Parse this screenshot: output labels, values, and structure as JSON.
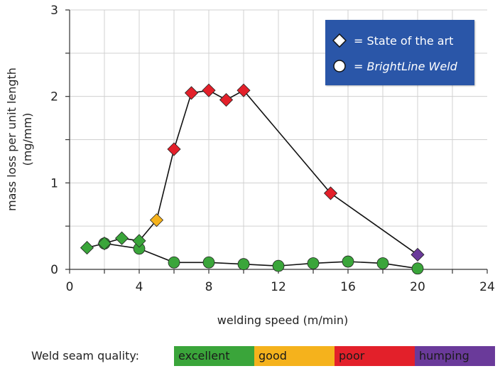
{
  "chart_data": {
    "type": "line",
    "title": "",
    "xlabel": "welding speed (m/min)",
    "ylabel_line1": "mass loss per unit length",
    "ylabel_line2": "(mg/mm)",
    "xlim": [
      0,
      24
    ],
    "ylim": [
      0,
      3
    ],
    "x_ticks": [
      "0",
      "4",
      "8",
      "12",
      "16",
      "20",
      "24"
    ],
    "y_ticks": [
      "0",
      "1",
      "2",
      "3"
    ],
    "grid": true,
    "legend_placement": "top-right",
    "series": [
      {
        "name": "State of the art",
        "marker": "diamond",
        "points": [
          {
            "x": 1,
            "y": 0.25,
            "quality": "excellent"
          },
          {
            "x": 2,
            "y": 0.3,
            "quality": "excellent"
          },
          {
            "x": 3,
            "y": 0.36,
            "quality": "excellent"
          },
          {
            "x": 4,
            "y": 0.33,
            "quality": "excellent"
          },
          {
            "x": 5,
            "y": 0.57,
            "quality": "good"
          },
          {
            "x": 6,
            "y": 1.39,
            "quality": "poor"
          },
          {
            "x": 7,
            "y": 2.04,
            "quality": "poor"
          },
          {
            "x": 8,
            "y": 2.07,
            "quality": "poor"
          },
          {
            "x": 9,
            "y": 1.96,
            "quality": "poor"
          },
          {
            "x": 10,
            "y": 2.07,
            "quality": "poor"
          },
          {
            "x": 15,
            "y": 0.88,
            "quality": "poor"
          },
          {
            "x": 20,
            "y": 0.17,
            "quality": "humping"
          }
        ]
      },
      {
        "name": "BrightLine Weld",
        "marker": "circle",
        "points": [
          {
            "x": 2,
            "y": 0.3,
            "quality": "excellent"
          },
          {
            "x": 4,
            "y": 0.24,
            "quality": "excellent"
          },
          {
            "x": 6,
            "y": 0.08,
            "quality": "excellent"
          },
          {
            "x": 8,
            "y": 0.08,
            "quality": "excellent"
          },
          {
            "x": 10,
            "y": 0.06,
            "quality": "excellent"
          },
          {
            "x": 12,
            "y": 0.04,
            "quality": "excellent"
          },
          {
            "x": 14,
            "y": 0.07,
            "quality": "excellent"
          },
          {
            "x": 16,
            "y": 0.09,
            "quality": "excellent"
          },
          {
            "x": 18,
            "y": 0.07,
            "quality": "excellent"
          },
          {
            "x": 20,
            "y": 0.01,
            "quality": "excellent"
          }
        ]
      }
    ]
  },
  "legend": {
    "state_label": "= State of the art",
    "bright_eq": "=",
    "bright_name": "BrightLine Weld"
  },
  "quality_scale": {
    "label": "Weld seam quality:",
    "levels": [
      {
        "key": "excellent",
        "label": "excellent",
        "color": "#3aa53a"
      },
      {
        "key": "good",
        "label": "good",
        "color": "#f5b21c"
      },
      {
        "key": "poor",
        "label": "poor",
        "color": "#e3202a"
      },
      {
        "key": "humping",
        "label": "humping",
        "color": "#6a3a9a"
      }
    ]
  }
}
